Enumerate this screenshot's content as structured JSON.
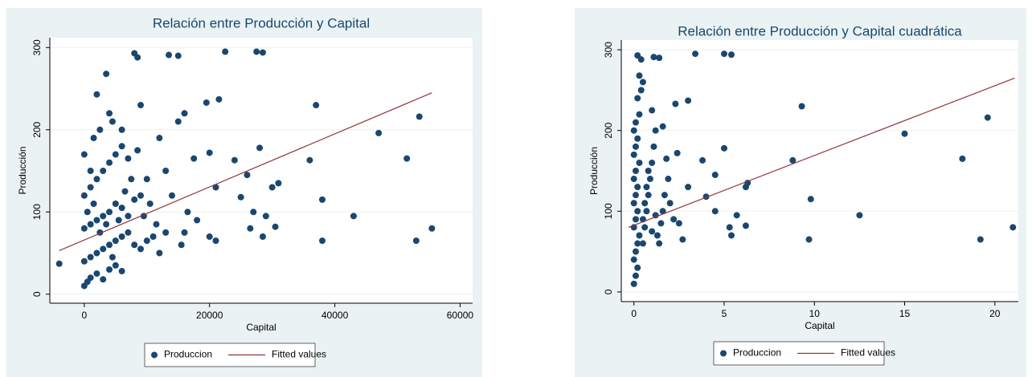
{
  "chart_data": [
    {
      "type": "scatter",
      "title": "Relación entre Producción y Capital",
      "x_label": "Capital",
      "y_label": "Producción",
      "xlim": [
        -5500,
        62000
      ],
      "ylim": [
        -11,
        312
      ],
      "xticks": [
        0,
        20000,
        40000,
        60000
      ],
      "yticks": [
        0,
        100,
        200,
        300
      ],
      "grid": true,
      "series": [
        {
          "name": "Produccion",
          "color": "#1a476f",
          "mode": "markers",
          "x": [
            -4000,
            8000,
            8500,
            13500,
            15000,
            22500,
            27500,
            28500,
            37000,
            47000,
            53500,
            51500,
            36000,
            38000,
            43000,
            38000,
            53000,
            55500,
            28000,
            31000,
            30000,
            26000,
            25000,
            27000,
            28500,
            29000,
            30500,
            26500,
            24000,
            21000,
            21500,
            19500,
            20000,
            17500,
            16500,
            15500,
            10000,
            12000,
            9000,
            3500,
            6000,
            2000,
            4000,
            1000,
            0,
            500,
            1000,
            2000,
            3000,
            4000,
            5000,
            6000,
            0,
            1000,
            2000,
            3000,
            4000,
            5000,
            6000,
            7000,
            8000,
            9000,
            10000,
            11000,
            12000,
            0,
            1000,
            2000,
            3000,
            4000,
            5000,
            6000,
            7000,
            8000,
            9000,
            0,
            1000,
            2000,
            3000,
            4000,
            5000,
            6000,
            7000,
            0,
            1500,
            2500,
            4500,
            500,
            1500,
            2500,
            3500,
            4500,
            5500,
            6500,
            7500,
            8500,
            9500,
            10500,
            11500,
            13000,
            14000,
            16000,
            18000,
            20000,
            21000,
            13000,
            15000,
            16000
          ],
          "values": [
            37,
            293,
            288,
            291,
            290,
            295,
            295,
            294,
            230,
            196,
            216,
            165,
            163,
            115,
            95,
            65,
            65,
            80,
            178,
            135,
            130,
            145,
            118,
            100,
            70,
            95,
            82,
            80,
            163,
            130,
            237,
            233,
            172,
            165,
            100,
            60,
            140,
            190,
            230,
            268,
            200,
            243,
            220,
            150,
            10,
            15,
            20,
            25,
            18,
            30,
            35,
            28,
            40,
            45,
            50,
            55,
            60,
            65,
            70,
            75,
            60,
            55,
            65,
            70,
            50,
            80,
            85,
            90,
            95,
            100,
            110,
            105,
            95,
            115,
            120,
            120,
            130,
            140,
            150,
            160,
            170,
            180,
            165,
            170,
            190,
            200,
            210,
            100,
            110,
            75,
            85,
            45,
            90,
            125,
            140,
            175,
            95,
            110,
            85,
            75,
            120,
            75,
            90,
            70,
            65,
            150,
            210,
            220
          ]
        },
        {
          "name": "Fitted values",
          "color": "#90353b",
          "mode": "line",
          "x": [
            -4000,
            55500
          ],
          "values": [
            53,
            245
          ]
        }
      ]
    },
    {
      "type": "scatter",
      "title": "Relación entre Producción y Capital cuadrática",
      "x_label": "Capital",
      "y_label": "Producción",
      "xlim": [
        -0.7,
        21.3
      ],
      "ylim": [
        -12,
        312
      ],
      "xticks": [
        0,
        5,
        10,
        15,
        20
      ],
      "yticks": [
        0,
        100,
        200,
        300
      ],
      "grid": true,
      "series": [
        {
          "name": "Produccion",
          "color": "#1a476f",
          "mode": "markers",
          "x": [
            0.2,
            0.4,
            1.1,
            1.4,
            3.4,
            5,
            5.4,
            9.3,
            15,
            19.6,
            18.2,
            8.8,
            9.8,
            12.5,
            9.7,
            19.2,
            21,
            5,
            6.3,
            6.2,
            4.5,
            4,
            4.5,
            5.4,
            5.7,
            6.2,
            5.3,
            3.8,
            3,
            3,
            2.3,
            2.4,
            1.8,
            1.6,
            1.4,
            0,
            0.1,
            0.2,
            0,
            0.1,
            0.2,
            0.3,
            0,
            0.1,
            0.2,
            0,
            0.1,
            0.2,
            0,
            0.1,
            0.3,
            0,
            0.1,
            0.2,
            0,
            0.1,
            0.3,
            0.2,
            0.4,
            0.5,
            0.6,
            0.7,
            0.8,
            0.9,
            1,
            1.1,
            1.2,
            0.5,
            0.6,
            0.7,
            0.8,
            1,
            1.2,
            1.3,
            1.5,
            1.7,
            1.9,
            2,
            2.2,
            2.5,
            2.7,
            1,
            1.6,
            0.3,
            0.5
          ],
          "values": [
            293,
            288,
            291,
            290,
            295,
            295,
            294,
            230,
            196,
            216,
            165,
            163,
            115,
            95,
            65,
            65,
            80,
            178,
            135,
            130,
            145,
            118,
            100,
            70,
            95,
            82,
            80,
            163,
            130,
            237,
            233,
            172,
            165,
            100,
            60,
            10,
            20,
            30,
            40,
            50,
            60,
            70,
            80,
            90,
            100,
            110,
            120,
            130,
            140,
            150,
            160,
            170,
            180,
            190,
            200,
            210,
            220,
            240,
            250,
            60,
            80,
            100,
            120,
            140,
            160,
            180,
            200,
            90,
            110,
            130,
            150,
            75,
            95,
            70,
            85,
            120,
            140,
            110,
            90,
            85,
            65,
            225,
            205,
            268,
            260
          ]
        },
        {
          "name": "Fitted values",
          "color": "#90353b",
          "mode": "line",
          "x": [
            -0.3,
            21.1
          ],
          "values": [
            80,
            265
          ]
        }
      ]
    }
  ]
}
